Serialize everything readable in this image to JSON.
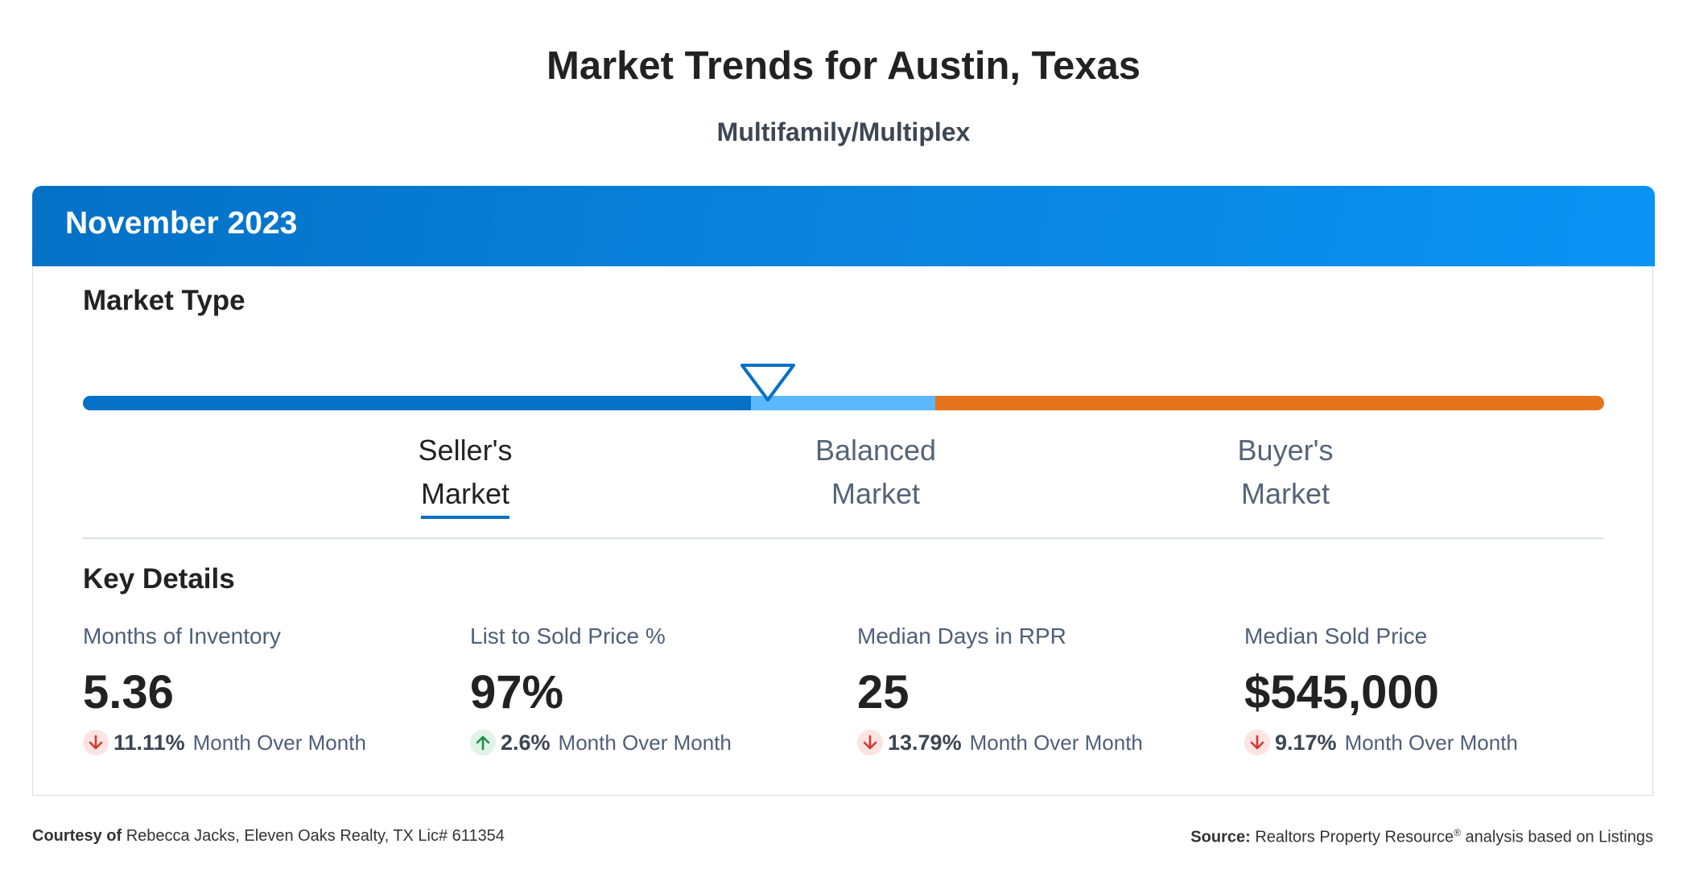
{
  "page": {
    "title": "Market Trends for Austin, Texas",
    "subtitle": "Multifamily/Multiplex"
  },
  "card": {
    "period": "November 2023",
    "market_type": {
      "heading": "Market Type",
      "segments": {
        "seller": {
          "line1": "Seller's",
          "line2": "Market",
          "color": "#0471c6",
          "active": true
        },
        "balanced": {
          "line1": "Balanced",
          "line2": "Market",
          "color": "#5cb8fb",
          "active": false
        },
        "buyer": {
          "line1": "Buyer's",
          "line2": "Market",
          "color": "#e5741d",
          "active": false
        }
      },
      "indicator_icon": "down-triangle-pointer-icon"
    },
    "key_details": {
      "heading": "Key Details",
      "metrics": [
        {
          "label": "Months of Inventory",
          "value": "5.36",
          "direction": "down",
          "change": "11.11%",
          "change_text": "Month Over Month"
        },
        {
          "label": "List to Sold Price %",
          "value": "97%",
          "direction": "up",
          "change": "2.6%",
          "change_text": "Month Over Month"
        },
        {
          "label": "Median Days in RPR",
          "value": "25",
          "direction": "down",
          "change": "13.79%",
          "change_text": "Month Over Month"
        },
        {
          "label": "Median Sold Price",
          "value": "$545,000",
          "direction": "down",
          "change": "9.17%",
          "change_text": "Month Over Month"
        }
      ]
    }
  },
  "footer": {
    "courtesy_label": "Courtesy of",
    "courtesy_text": "Rebecca Jacks, Eleven Oaks Realty, TX Lic# 611354",
    "source_label": "Source:",
    "source_name": "Realtors Property Resource",
    "source_mark": "®",
    "source_suffix": "analysis based on Listings"
  },
  "colors": {
    "header_start": "#0471c6",
    "header_end": "#0a93f3",
    "down_arrow": "#d23a2c",
    "up_arrow": "#1f8f4a"
  }
}
